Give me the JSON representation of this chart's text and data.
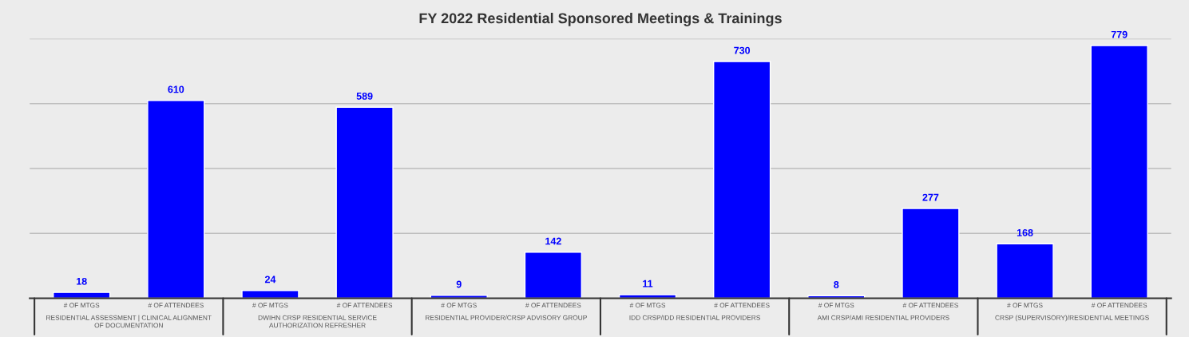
{
  "chart_data": {
    "type": "bar",
    "title": "FY 2022 Residential Sponsored Meetings & Trainings",
    "categories": [
      "# OF MTGS",
      "# OF ATTENDEES",
      "# OF MTGS",
      "# OF ATTENDEES",
      "# OF MTGS",
      "# OF ATTENDEES",
      "# OF MTGS",
      "# OF ATTENDEES",
      "# OF MTGS",
      "# OF ATTENDEES",
      "# OF MTGS",
      "# OF ATTENDEES"
    ],
    "values": [
      18,
      610,
      24,
      589,
      9,
      142,
      11,
      730,
      8,
      277,
      168,
      779
    ],
    "color": "#0000ff",
    "data_labels": true,
    "annotations": [
      "RESIDENTIAL ASSESSMENT | CLINICAL ALIGNMENT\nOF DOCUMENTATION",
      "DWIHN CRSP RESIDENTIAL SERVICE\nAUTHORIZATION REFRESHER",
      "RESIDENTIAL PROVIDER/CRSP ADVISORY GROUP",
      "IDD CRSP/IDD RESIDENTIAL PROVIDERS",
      "AMI CRSP/AMI RESIDENTIAL PROVIDERS",
      "CRSP (SUPERVISORY)/RESIDENTIAL MEETINGS"
    ],
    "ylim": [
      0,
      800
    ],
    "yticks": [
      {
        "value": 200,
        "label": null
      },
      {
        "value": 400,
        "label": null
      },
      {
        "value": 600,
        "label": null
      },
      {
        "value": 800,
        "label": null
      }
    ],
    "grid": "y",
    "tick_labels": "x"
  }
}
